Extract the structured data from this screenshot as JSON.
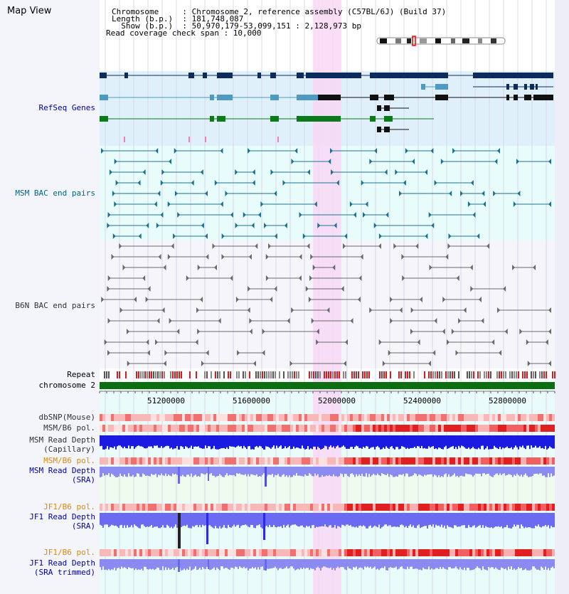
{
  "view_title": "Map View",
  "header": {
    "lines": [
      "Chromosome     : Chromosome 2, reference assembly (C57BL/6J) (Build 37)",
      "Length (b.p.)  : 181,748,087",
      "  Show (b.p.)  : 50,970,179-53,099,151 : 2,128,973 bp",
      "Read coverage check span : 10,000"
    ]
  },
  "tracks": {
    "refseq": "RefSeq Genes",
    "msm_bac": "MSM BAC end pairs",
    "b6n_bac": "B6N BAC end pairs",
    "repeat": "Repeat",
    "chromosome": "chromosome 2",
    "dbsnp": "dbSNP(Mouse)",
    "msm_b6_pol_1": "MSM/B6 pol.",
    "msm_depth_cap_1": "MSM Read Depth",
    "msm_depth_cap_2": "(Capillary)",
    "msm_b6_pol_2": "MSM/B6 pol.",
    "msm_depth_sra_1": "MSM Read Depth",
    "msm_depth_sra_2": "(SRA)",
    "jf1_b6_pol_1": "JF1/B6 pol.",
    "jf1_depth_sra_1": "JF1 Read Depth",
    "jf1_depth_sra_2": "(SRA)",
    "jf1_b6_pol_2": "JF1/B6 pol.",
    "jf1_depth_trim_1": "JF1 Read Depth",
    "jf1_depth_trim_2": "(SRA trimmed)"
  },
  "axis": {
    "ticks": [
      "51200000",
      "51600000",
      "52000000",
      "52400000",
      "52800000"
    ]
  },
  "colors": {
    "refseq_bg": "#dff0fb",
    "msm_bg": "#e8fcfc",
    "b6n_bg": "#f5f5fa",
    "highlight": "#f8d8f4",
    "gene_dark": "#0d2c5e",
    "gene_light": "#4f9ac0",
    "gene_green": "#0b7a18",
    "chrom": "#0b6e10",
    "depth": "#2a2ae8",
    "pol_label": "#e08a00",
    "depth_label": "#0000aa"
  }
}
